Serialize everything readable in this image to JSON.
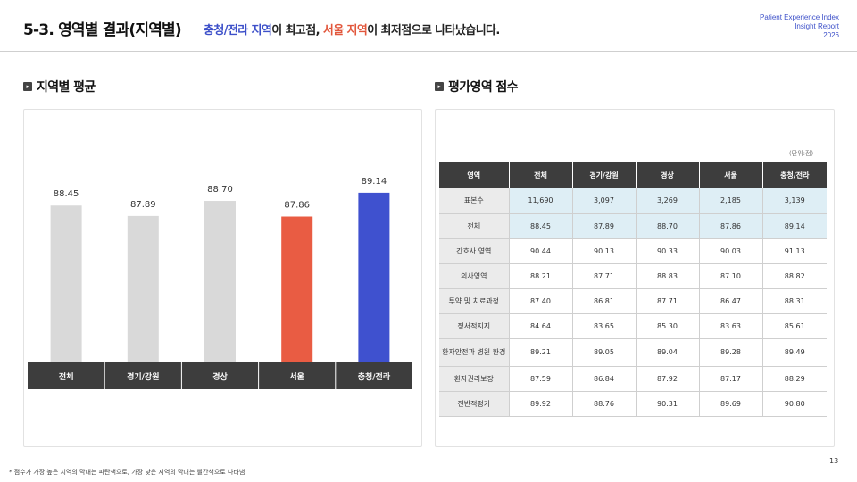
{
  "header": {
    "title": "5-3. 영역별 결과(지역별)",
    "sub_highlight_1": "충청/전라 지역",
    "sub_text_1": "이 최고점, ",
    "sub_highlight_2": "서울 지역",
    "sub_text_2": "이 최저점으로 나타났습니다.",
    "report_line1": "Patient Experience Index",
    "report_line2": "Insight Report",
    "report_line3": "2026"
  },
  "left_section": {
    "title": "지역별 평균"
  },
  "right_section": {
    "title": "평가영역 점수",
    "unit": "(단위:점)"
  },
  "colors": {
    "neutral": "#d9d9d9",
    "lowest": "#e95c43",
    "highest": "#3f51cf",
    "axis_bg": "#3d3d3d"
  },
  "chart_data": {
    "type": "bar",
    "categories": [
      "전체",
      "경기/강원",
      "경상",
      "서울",
      "충청/전라"
    ],
    "values": [
      88.45,
      87.89,
      88.7,
      87.86,
      89.14
    ],
    "value_labels": [
      "88.45",
      "87.89",
      "88.70",
      "87.86",
      "89.14"
    ],
    "highlight": {
      "lowest": "서울",
      "highest": "충청/전라"
    }
  },
  "table": {
    "headers": [
      "영역",
      "전체",
      "경기/강원",
      "경상",
      "서울",
      "충청/전라"
    ],
    "rows": [
      {
        "label": "표본수",
        "values": [
          "11,690",
          "3,097",
          "3,269",
          "2,185",
          "3,139"
        ]
      },
      {
        "label": "전체",
        "values": [
          "88.45",
          "87.89",
          "88.70",
          "87.86",
          "89.14"
        ]
      },
      {
        "label": "간호사 영역",
        "values": [
          "90.44",
          "90.13",
          "90.33",
          "90.03",
          "91.13"
        ]
      },
      {
        "label": "의사영역",
        "values": [
          "88.21",
          "87.71",
          "88.83",
          "87.10",
          "88.82"
        ]
      },
      {
        "label": "투약 및 치료과정",
        "values": [
          "87.40",
          "86.81",
          "87.71",
          "86.47",
          "88.31"
        ]
      },
      {
        "label": "정서적지지",
        "values": [
          "84.64",
          "83.65",
          "85.30",
          "83.63",
          "85.61"
        ]
      },
      {
        "label": "환자안전과 병원 환경",
        "values": [
          "89.21",
          "89.05",
          "89.04",
          "89.28",
          "89.49"
        ]
      },
      {
        "label": "환자권리보장",
        "values": [
          "87.59",
          "86.84",
          "87.92",
          "87.17",
          "88.29"
        ]
      },
      {
        "label": "전반적평가",
        "values": [
          "89.92",
          "88.76",
          "90.31",
          "89.69",
          "90.80"
        ]
      }
    ]
  },
  "footnote": "* 점수가 가장 높은 지역의 막대는 파란색으로, 가장 낮은 지역의 막대는 빨간색으로 나타냄",
  "page_number": "13"
}
